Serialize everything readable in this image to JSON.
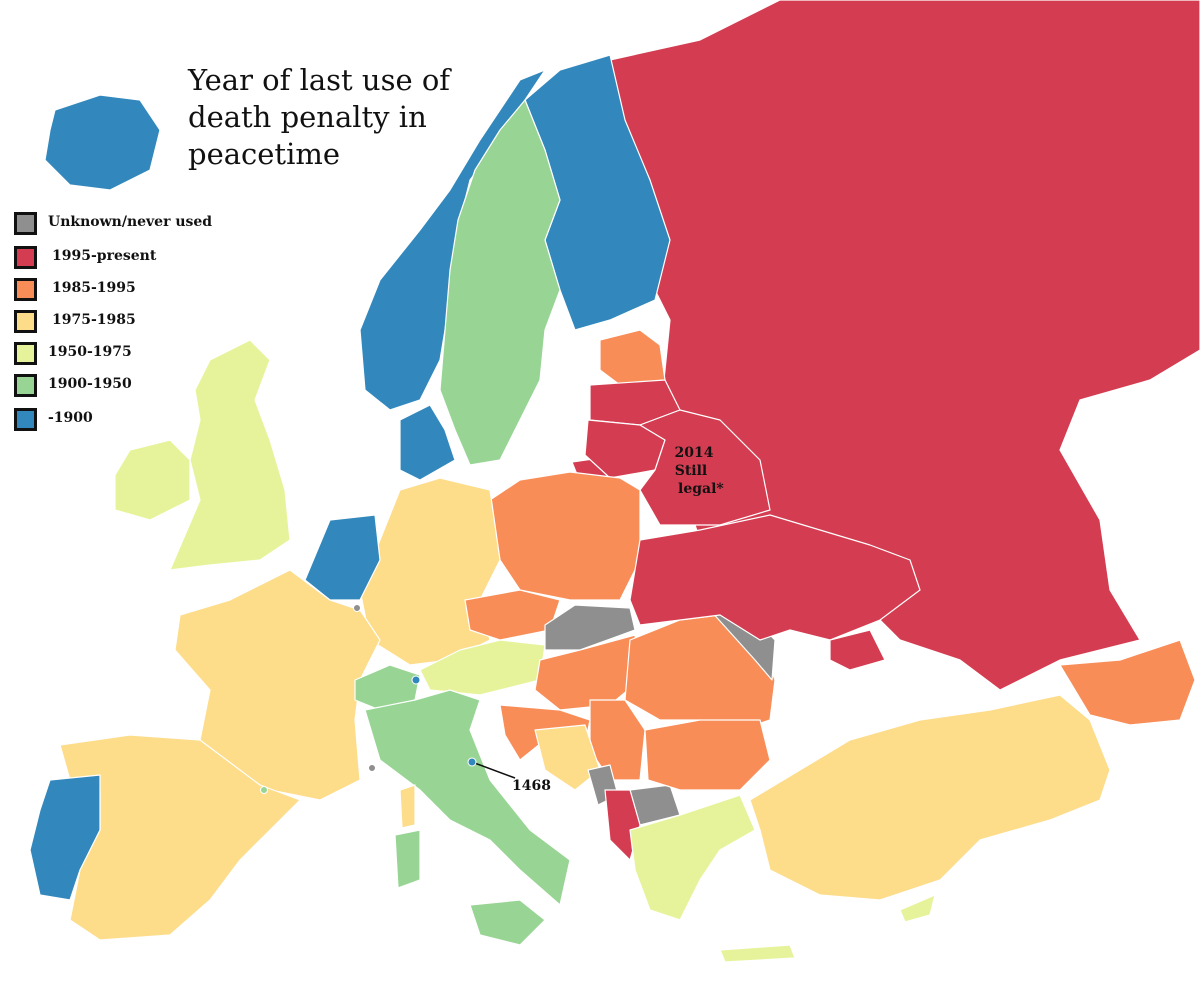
{
  "title": "Year of last use of death penalty in peacetime",
  "legend": [
    {
      "label": "Unknown/never used",
      "color": "#8f8f8f"
    },
    {
      "label": "1995-present",
      "color": "#d43d51"
    },
    {
      "label": "1985-1995",
      "color": "#f88d58"
    },
    {
      "label": "1975-1985",
      "color": "#fddc8a"
    },
    {
      "label": "1950-1975",
      "color": "#e7f39a"
    },
    {
      "label": "1900-1950",
      "color": "#98d595"
    },
    {
      "label": "-1900",
      "color": "#3288bd"
    }
  ],
  "annotations": {
    "belarus_line1": "2014",
    "belarus_line2": "Still",
    "belarus_line3": "legal*",
    "san_marino": "1468"
  }
}
